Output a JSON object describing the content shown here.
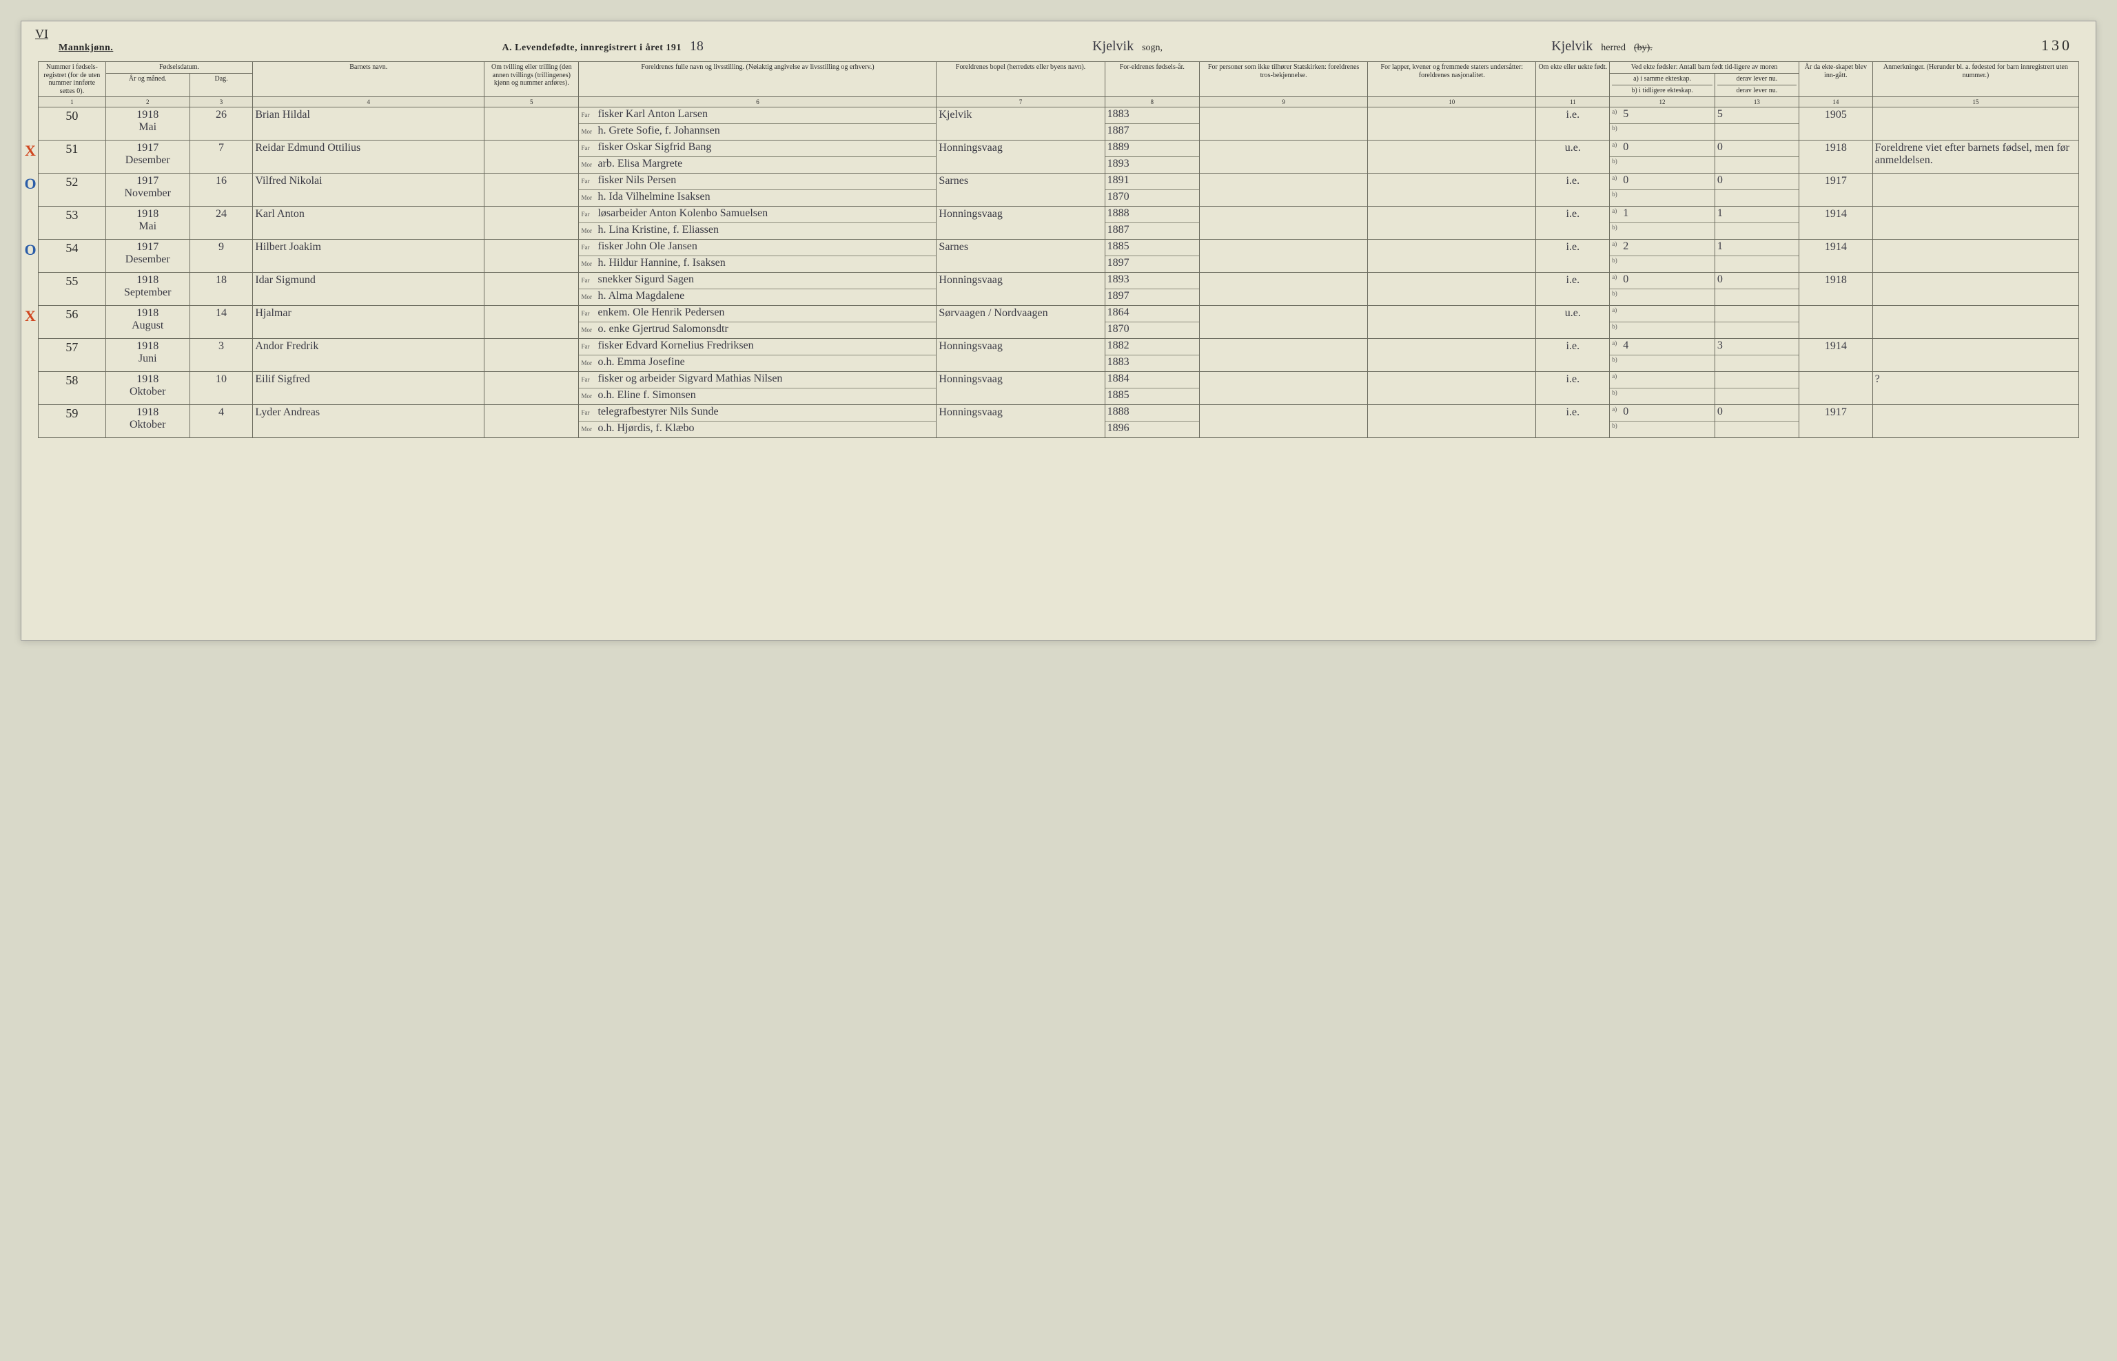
{
  "top_corner_mark": "VI",
  "header": {
    "gender_label": "Mannkjønn.",
    "title_prefix": "A.  Levendefødte, innregistrert i året 191",
    "year_suffix_hand": "18",
    "sogn_label": "sogn,",
    "sogn_hand": "Kjelvik",
    "herred_label_pre": "herred",
    "herred_label_strike": "(by).",
    "herred_hand": "Kjelvik",
    "page_number": "130"
  },
  "col_headers": {
    "1": "Nummer i fødsels-registret (for de uten nummer innførte settes 0).",
    "2_3_group": "Fødselsdatum.",
    "2": "År og måned.",
    "3": "Dag.",
    "4": "Barnets navn.",
    "5": "Om tvilling eller trilling (den annen tvillings (trillingenes) kjønn og nummer anføres).",
    "6": "Foreldrenes fulle navn og livsstilling. (Nøiaktig angivelse av livsstilling og erhverv.)",
    "6_far": "Far",
    "6_mor": "Mor",
    "7": "Foreldrenes bopel (herredets eller byens navn).",
    "8": "For-eldrenes fødsels-år.",
    "9": "For personer som ikke tilhører Statskirken: foreldrenes tros-bekjennelse.",
    "10": "For lapper, kvener og fremmede staters undersåtter: foreldrenes nasjonalitet.",
    "11": "Om ekte eller uekte født.",
    "12_13_group": "Ved ekte fødsler: Antall barn født tid-ligere av moren",
    "12a": "a) i samme ekteskap.",
    "12b": "b) i tidligere ekteskap.",
    "13a": "derav lever nu.",
    "13b": "derav lever nu.",
    "14": "År da ekte-skapet blev inn-gått.",
    "15": "Anmerkninger. (Herunder bl. a. fødested for barn innregistrert uten nummer.)"
  },
  "col_nums": [
    "1",
    "2",
    "3",
    "4",
    "5",
    "6",
    "7",
    "8",
    "9",
    "10",
    "11",
    "12",
    "13",
    "14",
    "15"
  ],
  "rows": [
    {
      "mark": "",
      "mark_color": "",
      "num": "50",
      "year": "1918",
      "month": "Mai",
      "day": "26",
      "child": "Brian Hildal",
      "far": "fisker Karl Anton Larsen",
      "mor": "h. Grete Sofie, f. Johannsen",
      "bopel": "Kjelvik",
      "far_aar": "1883",
      "mor_aar": "1887",
      "c9": "",
      "c10": "",
      "ekte": "i.e.",
      "a12": "5",
      "a13": "5",
      "c14": "1905",
      "c15": ""
    },
    {
      "mark": "X",
      "mark_color": "red",
      "num": "51",
      "year": "1917",
      "month": "Desember",
      "day": "7",
      "child": "Reidar Edmund Ottilius",
      "far": "fisker Oskar Sigfrid Bang",
      "mor": "arb. Elisa Margrete",
      "bopel": "Honningsvaag",
      "far_aar": "1889",
      "mor_aar": "1893",
      "c9": "",
      "c10": "",
      "ekte": "u.e.",
      "a12": "0",
      "a13": "0",
      "c14": "1918",
      "c15": "Foreldrene viet efter barnets fødsel, men før anmeldelsen."
    },
    {
      "mark": "O",
      "mark_color": "blue",
      "num": "52",
      "year": "1917",
      "month": "November",
      "day": "16",
      "child": "Vilfred Nikolai",
      "far": "fisker Nils Persen",
      "mor": "h. Ida Vilhelmine Isaksen",
      "bopel": "Sarnes",
      "far_aar": "1891",
      "mor_aar": "1870",
      "c9": "",
      "c10": "",
      "ekte": "i.e.",
      "a12": "0",
      "a13": "0",
      "c14": "1917",
      "c15": ""
    },
    {
      "mark": "",
      "mark_color": "",
      "num": "53",
      "year": "1918",
      "month": "Mai",
      "day": "24",
      "child": "Karl Anton",
      "far": "løsarbeider Anton Kolenbo Samuelsen",
      "mor": "h. Lina Kristine, f. Eliassen",
      "bopel": "Honningsvaag",
      "far_aar": "1888",
      "mor_aar": "1887",
      "c9": "",
      "c10": "",
      "ekte": "i.e.",
      "a12": "1",
      "a13": "1",
      "c14": "1914",
      "c15": ""
    },
    {
      "mark": "O",
      "mark_color": "blue",
      "num": "54",
      "year": "1917",
      "month": "Desember",
      "day": "9",
      "child": "Hilbert Joakim",
      "far": "fisker John Ole Jansen",
      "mor": "h. Hildur Hannine, f. Isaksen",
      "bopel": "Sarnes",
      "far_aar": "1885",
      "mor_aar": "1897",
      "c9": "",
      "c10": "",
      "ekte": "i.e.",
      "a12": "2",
      "a13": "1",
      "c14": "1914",
      "c15": ""
    },
    {
      "mark": "",
      "mark_color": "",
      "num": "55",
      "year": "1918",
      "month": "September",
      "day": "18",
      "child": "Idar Sigmund",
      "far": "snekker Sigurd Sagen",
      "mor": "h. Alma Magdalene",
      "bopel": "Honningsvaag",
      "far_aar": "1893",
      "mor_aar": "1897",
      "c9": "",
      "c10": "",
      "ekte": "i.e.",
      "a12": "0",
      "a13": "0",
      "c14": "1918",
      "c15": ""
    },
    {
      "mark": "X",
      "mark_color": "red",
      "num": "56",
      "year": "1918",
      "month": "August",
      "day": "14",
      "child": "Hjalmar",
      "far": "enkem. Ole Henrik Pedersen",
      "mor": "o. enke Gjertrud Salomonsdtr",
      "bopel": "Sørvaagen / Nordvaagen",
      "far_aar": "1864",
      "mor_aar": "1870",
      "c9": "",
      "c10": "",
      "ekte": "u.e.",
      "a12": "",
      "a13": "",
      "c14": "",
      "c15": ""
    },
    {
      "mark": "",
      "mark_color": "",
      "num": "57",
      "year": "1918",
      "month": "Juni",
      "day": "3",
      "child": "Andor Fredrik",
      "far": "fisker Edvard Kornelius Fredriksen",
      "mor": "o.h. Emma Josefine",
      "bopel": "Honningsvaag",
      "far_aar": "1882",
      "mor_aar": "1883",
      "c9": "",
      "c10": "",
      "ekte": "i.e.",
      "a12": "4",
      "a13": "3",
      "c14": "1914",
      "c15": ""
    },
    {
      "mark": "",
      "mark_color": "",
      "num": "58",
      "year": "1918",
      "month": "Oktober",
      "day": "10",
      "child": "Eilif Sigfred",
      "far": "fisker og arbeider Sigvard Mathias Nilsen",
      "mor": "o.h. Eline f. Simonsen",
      "bopel": "Honningsvaag",
      "far_aar": "1884",
      "mor_aar": "1885",
      "c9": "",
      "c10": "",
      "ekte": "i.e.",
      "a12": "",
      "a13": "",
      "c14": "",
      "c15": "?"
    },
    {
      "mark": "",
      "mark_color": "",
      "num": "59",
      "year": "1918",
      "month": "Oktober",
      "day": "4",
      "child": "Lyder Andreas",
      "far": "telegrafbestyrer Nils Sunde",
      "mor": "o.h. Hjørdis, f. Klæbo",
      "bopel": "Honningsvaag",
      "far_aar": "1888",
      "mor_aar": "1896",
      "c9": "",
      "c10": "",
      "ekte": "i.e.",
      "a12": "0",
      "a13": "0",
      "c14": "1917",
      "c15": ""
    }
  ]
}
